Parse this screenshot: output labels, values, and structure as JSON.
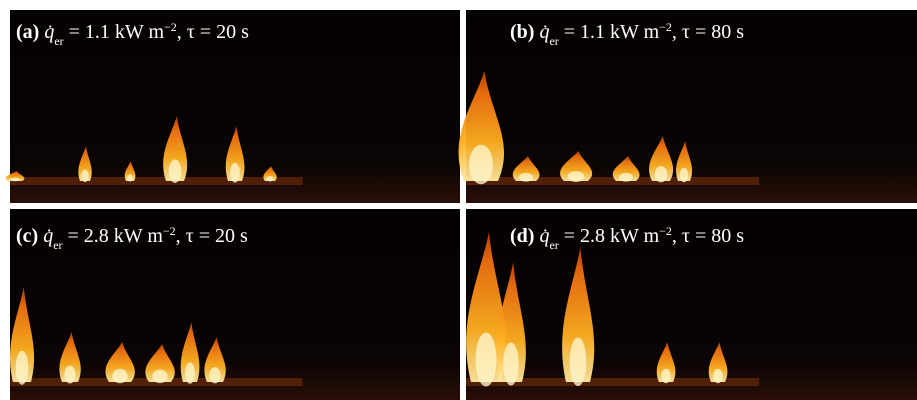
{
  "panels": [
    {
      "label": "(a)",
      "symbol": "q̇",
      "subscript": "er",
      "text": "= 1.1 kW m",
      "superscript": "−2",
      "tail": ", τ = 20 s"
    },
    {
      "label": "(b)",
      "symbol": "q̇",
      "subscript": "er",
      "text": "= 1.1 kW m",
      "superscript": "−2",
      "tail": ", τ = 80 s"
    },
    {
      "label": "(c)",
      "symbol": "q̇",
      "subscript": "er",
      "text": "= 2.8 kW m",
      "superscript": "−2",
      "tail": ", τ = 20 s"
    },
    {
      "label": "(d)",
      "symbol": "q̇",
      "subscript": "er",
      "text": "= 2.8 kW m",
      "superscript": "−2",
      "tail": ", τ = 80 s"
    }
  ]
}
